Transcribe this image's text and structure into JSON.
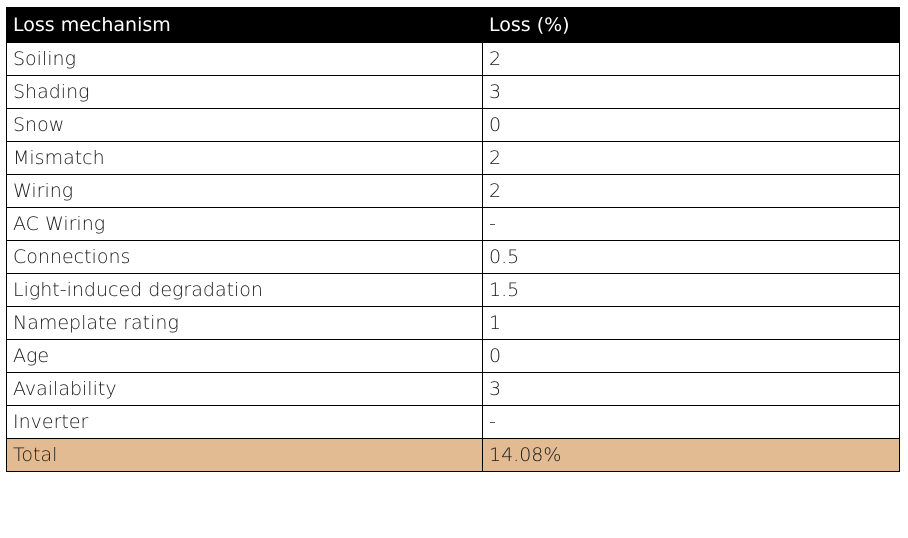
{
  "table": {
    "headers": [
      "Loss mechanism",
      "Loss (%)"
    ],
    "rows": [
      {
        "mechanism": "Soiling",
        "loss": "2"
      },
      {
        "mechanism": "Shading",
        "loss": "3"
      },
      {
        "mechanism": "Snow",
        "loss": "0"
      },
      {
        "mechanism": "Mismatch",
        "loss": "2"
      },
      {
        "mechanism": "Wiring",
        "loss": "2"
      },
      {
        "mechanism": "AC Wiring",
        "loss": "-"
      },
      {
        "mechanism": "Connections",
        "loss": "0.5"
      },
      {
        "mechanism": "Light-induced degradation",
        "loss": "1.5"
      },
      {
        "mechanism": "Nameplate rating",
        "loss": "1"
      },
      {
        "mechanism": "Age",
        "loss": "0"
      },
      {
        "mechanism": "Availability",
        "loss": "3"
      },
      {
        "mechanism": "Inverter",
        "loss": "-"
      }
    ],
    "total": {
      "label": "Total",
      "value": "14.08%"
    },
    "colors": {
      "header_bg": "#000000",
      "header_text": "#ffffff",
      "total_bg": "#e2bb92",
      "border": "#000000"
    }
  }
}
